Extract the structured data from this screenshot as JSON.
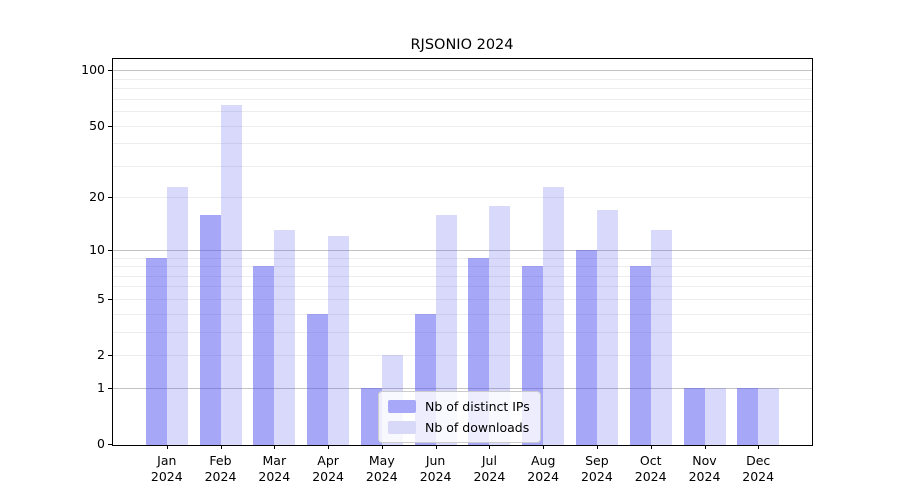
{
  "title": "RJSONIO 2024",
  "chart_data": {
    "type": "bar",
    "title": "RJSONIO 2024",
    "categories": [
      "Jan 2024",
      "Feb 2024",
      "Mar 2024",
      "Apr 2024",
      "May 2024",
      "Jun 2024",
      "Jul 2024",
      "Aug 2024",
      "Sep 2024",
      "Oct 2024",
      "Nov 2024",
      "Dec 2024"
    ],
    "series": [
      {
        "name": "Nb of distinct IPs",
        "color": "rgba(80,80,240,0.50)",
        "values": [
          9,
          16,
          8,
          4,
          1,
          4,
          9,
          8,
          10,
          8,
          1,
          1
        ]
      },
      {
        "name": "Nb of downloads",
        "color": "rgba(80,80,240,0.22)",
        "values": [
          23,
          65,
          13,
          12,
          2,
          16,
          18,
          23,
          17,
          13,
          1,
          1
        ]
      }
    ],
    "xlabel": "",
    "ylabel": "",
    "yscale": "log1p",
    "ylim": [
      0,
      117
    ],
    "yticks": [
      100,
      50,
      20,
      10,
      5,
      2,
      1,
      0
    ],
    "major_gridlines": [
      1,
      10,
      100
    ],
    "minor_gridlines": [
      2,
      3,
      4,
      5,
      6,
      7,
      8,
      9,
      20,
      30,
      40,
      50,
      60,
      70,
      80,
      90
    ],
    "grid": true,
    "legend_position": "lower center"
  },
  "legend": {
    "items": [
      {
        "label": "Nb of distinct IPs",
        "color": "#a8a8f8"
      },
      {
        "label": "Nb of downloads",
        "color": "#d8d8f8"
      }
    ]
  }
}
